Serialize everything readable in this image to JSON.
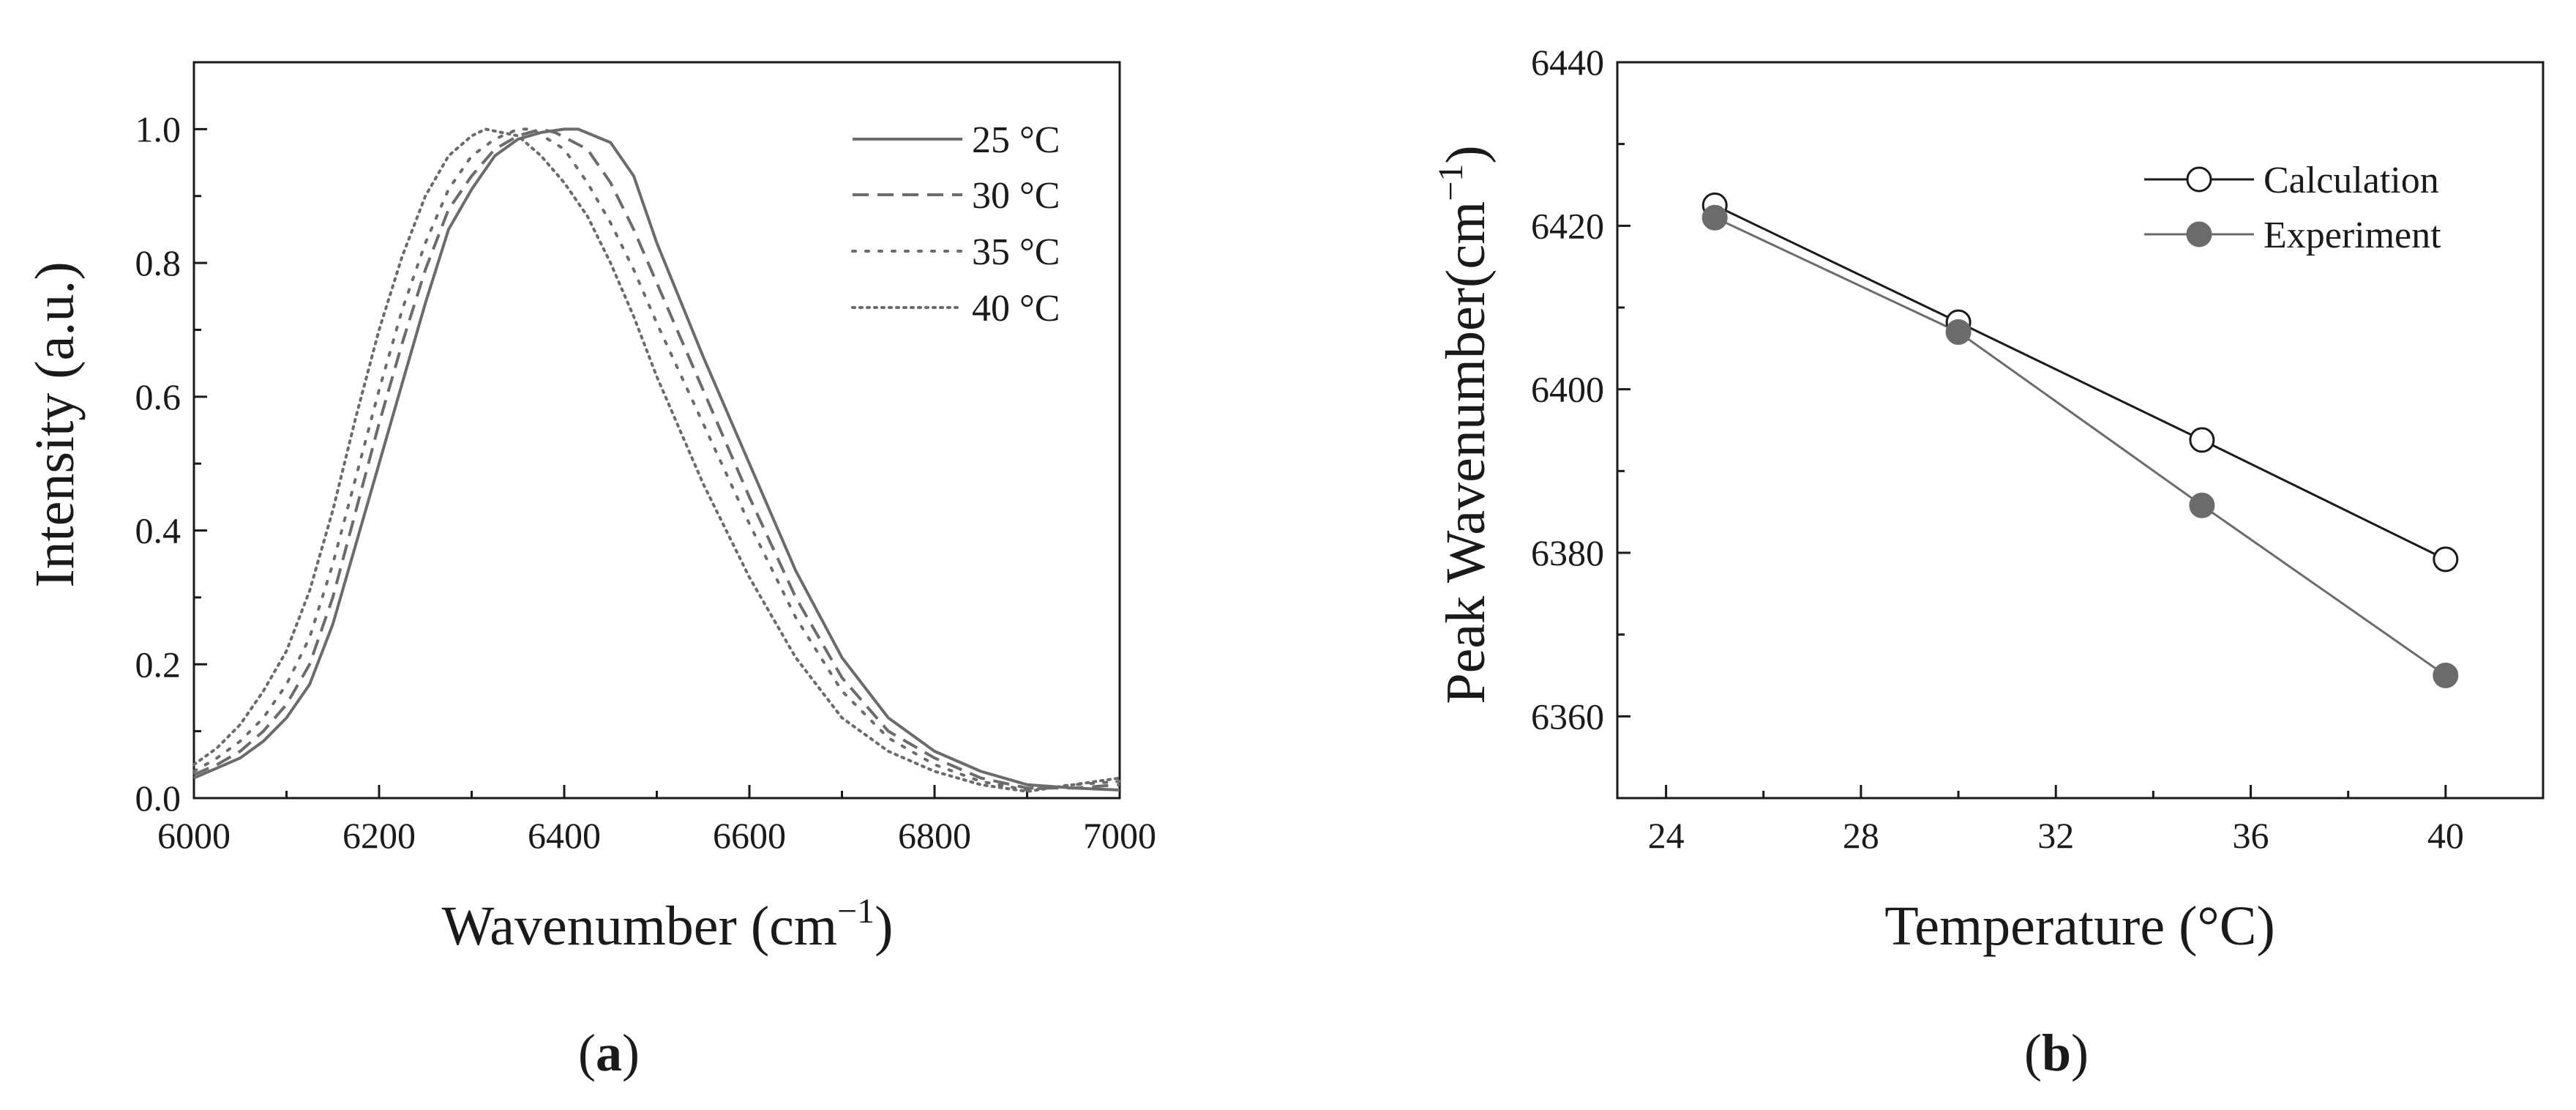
{
  "figure": {
    "panels": [
      "(a)",
      "(b)"
    ]
  },
  "chart_data": [
    {
      "panel": "a",
      "type": "line",
      "title": "",
      "xlabel_text": "Wavenumber (cm",
      "xlabel_sup": "−1",
      "xlabel_close": ")",
      "ylabel": "Intensity (a.u.)",
      "xlim": [
        6000,
        7000
      ],
      "ylim": [
        0,
        1.1
      ],
      "xticks": [
        6000,
        6200,
        6400,
        6600,
        6800,
        7000
      ],
      "xtick_labels": [
        "6000",
        "6200",
        "6400",
        "6600",
        "6800",
        "7000"
      ],
      "yticks": [
        0.0,
        0.2,
        0.4,
        0.6,
        0.8,
        1.0
      ],
      "ytick_labels": [
        "0.0",
        "0.2",
        "0.4",
        "0.6",
        "0.8",
        "1.0"
      ],
      "grid": false,
      "legend_position": "top-right",
      "series": [
        {
          "name": "25 °C",
          "style": "solid",
          "color": "#6b6b6b",
          "x": [
            6000,
            6025,
            6050,
            6075,
            6100,
            6125,
            6150,
            6175,
            6200,
            6225,
            6250,
            6275,
            6300,
            6325,
            6350,
            6375,
            6400,
            6415,
            6450,
            6475,
            6500,
            6550,
            6600,
            6650,
            6700,
            6750,
            6800,
            6850,
            6900,
            6950,
            7000
          ],
          "y": [
            0.03,
            0.045,
            0.06,
            0.085,
            0.12,
            0.17,
            0.26,
            0.38,
            0.5,
            0.62,
            0.74,
            0.85,
            0.91,
            0.96,
            0.985,
            0.995,
            1.0,
            1.0,
            0.98,
            0.93,
            0.83,
            0.66,
            0.5,
            0.34,
            0.21,
            0.12,
            0.07,
            0.04,
            0.02,
            0.015,
            0.012
          ]
        },
        {
          "name": "30 °C",
          "style": "dashed",
          "color": "#6b6b6b",
          "x": [
            6000,
            6025,
            6050,
            6075,
            6100,
            6125,
            6150,
            6175,
            6200,
            6225,
            6250,
            6275,
            6300,
            6325,
            6350,
            6375,
            6390,
            6425,
            6450,
            6475,
            6500,
            6550,
            6600,
            6650,
            6700,
            6750,
            6800,
            6850,
            6900,
            6950,
            7000
          ],
          "y": [
            0.035,
            0.05,
            0.07,
            0.1,
            0.14,
            0.2,
            0.3,
            0.43,
            0.56,
            0.68,
            0.79,
            0.88,
            0.93,
            0.97,
            0.99,
            1.0,
            0.995,
            0.97,
            0.92,
            0.85,
            0.77,
            0.61,
            0.45,
            0.3,
            0.18,
            0.1,
            0.06,
            0.03,
            0.015,
            0.015,
            0.02
          ]
        },
        {
          "name": "35 °C",
          "style": "dotted",
          "color": "#6b6b6b",
          "x": [
            6000,
            6025,
            6050,
            6075,
            6100,
            6125,
            6150,
            6175,
            6200,
            6225,
            6250,
            6275,
            6300,
            6325,
            6350,
            6365,
            6400,
            6425,
            6450,
            6475,
            6500,
            6550,
            6600,
            6650,
            6700,
            6750,
            6800,
            6850,
            6900,
            6950,
            7000
          ],
          "y": [
            0.04,
            0.06,
            0.085,
            0.12,
            0.17,
            0.24,
            0.35,
            0.48,
            0.61,
            0.73,
            0.83,
            0.91,
            0.96,
            0.985,
            1.0,
            1.0,
            0.97,
            0.92,
            0.86,
            0.79,
            0.71,
            0.56,
            0.41,
            0.27,
            0.16,
            0.09,
            0.05,
            0.025,
            0.012,
            0.02,
            0.025
          ]
        },
        {
          "name": "40 °C",
          "style": "dotted",
          "color": "#6b6b6b",
          "x": [
            6000,
            6025,
            6050,
            6075,
            6100,
            6125,
            6150,
            6175,
            6200,
            6225,
            6250,
            6275,
            6300,
            6315,
            6350,
            6375,
            6400,
            6425,
            6450,
            6475,
            6500,
            6550,
            6600,
            6650,
            6700,
            6750,
            6800,
            6850,
            6900,
            6950,
            7000
          ],
          "y": [
            0.05,
            0.075,
            0.11,
            0.16,
            0.22,
            0.31,
            0.43,
            0.57,
            0.7,
            0.81,
            0.9,
            0.96,
            0.99,
            1.0,
            0.99,
            0.96,
            0.92,
            0.87,
            0.8,
            0.72,
            0.63,
            0.47,
            0.33,
            0.21,
            0.12,
            0.07,
            0.04,
            0.02,
            0.01,
            0.02,
            0.03
          ]
        }
      ]
    },
    {
      "panel": "b",
      "type": "line",
      "title": "",
      "xlabel": "Temperature (°C)",
      "ylabel_text": "Peak Wavenumber(cm",
      "ylabel_sup": "−1",
      "ylabel_close": ")",
      "xlim": [
        23,
        42
      ],
      "ylim": [
        6350,
        6440
      ],
      "xticks": [
        24,
        28,
        32,
        36,
        40
      ],
      "xtick_labels": [
        "24",
        "28",
        "32",
        "36",
        "40"
      ],
      "yticks": [
        6360,
        6380,
        6400,
        6420,
        6440
      ],
      "ytick_labels": [
        "6360",
        "6380",
        "6400",
        "6420",
        "6440"
      ],
      "grid": false,
      "legend_position": "top-right",
      "series": [
        {
          "name": "Calculation",
          "marker": "open-circle",
          "color": "#1a1a1a",
          "x": [
            25,
            30,
            35,
            40
          ],
          "y": [
            6422.5,
            6408.2,
            6393.8,
            6379.2
          ]
        },
        {
          "name": "Experiment",
          "marker": "filled-circle",
          "color": "#6b6b6b",
          "x": [
            25,
            30,
            35,
            40
          ],
          "y": [
            6421.0,
            6407.0,
            6385.8,
            6365.0
          ]
        }
      ]
    }
  ]
}
